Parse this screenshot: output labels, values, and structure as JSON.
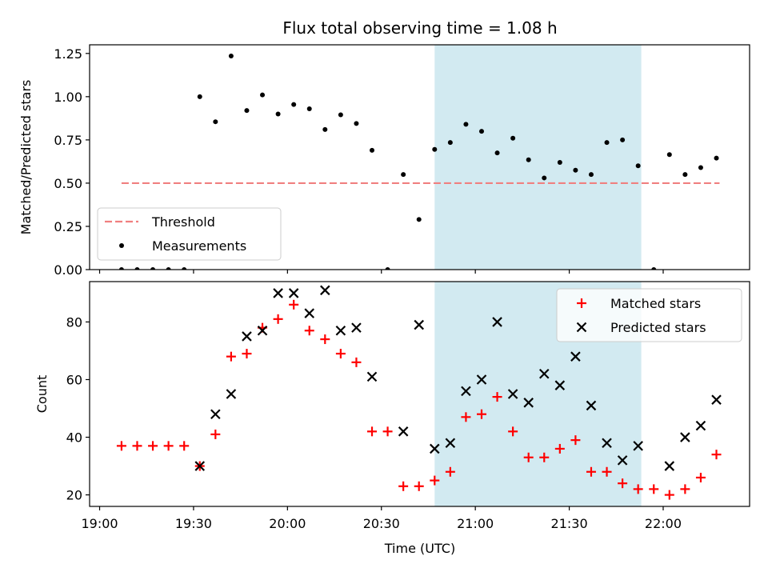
{
  "title": "Flux total observing time = 1.08 h",
  "colors": {
    "threshold": "#f08080",
    "measurement": "#000000",
    "matched": "#ff0000",
    "predicted": "#000000",
    "shade": "#add8e6"
  },
  "x_axis": {
    "label": "Time (UTC)",
    "ticks": [
      "19:00",
      "19:30",
      "20:00",
      "20:30",
      "21:00",
      "21:30",
      "22:00"
    ]
  },
  "chart_data": [
    {
      "type": "scatter",
      "ylabel": "Matched/Predicted stars",
      "ylim": [
        0,
        1.3
      ],
      "yticks": [
        "0.00",
        "0.25",
        "0.50",
        "0.75",
        "1.00",
        "1.25"
      ],
      "ytick_values": [
        0,
        0.25,
        0.5,
        0.75,
        1.0,
        1.25
      ],
      "shaded_region": [
        "20:47",
        "21:53"
      ],
      "threshold": {
        "name": "Threshold",
        "value": 0.5,
        "from": "19:07",
        "to": "22:18"
      },
      "series": [
        {
          "name": "Measurements",
          "x": [
            "19:07",
            "19:12",
            "19:17",
            "19:22",
            "19:27",
            "19:32",
            "19:37",
            "19:42",
            "19:47",
            "19:52",
            "19:57",
            "20:02",
            "20:07",
            "20:12",
            "20:17",
            "20:22",
            "20:27",
            "20:32",
            "20:37",
            "20:42",
            "20:47",
            "20:52",
            "20:57",
            "21:02",
            "21:07",
            "21:12",
            "21:17",
            "21:22",
            "21:27",
            "21:32",
            "21:37",
            "21:42",
            "21:47",
            "21:52",
            "21:57",
            "22:02",
            "22:07",
            "22:12",
            "22:17"
          ],
          "y": [
            0,
            0,
            0,
            0,
            0,
            1.0,
            0.855,
            1.235,
            0.92,
            1.01,
            0.9,
            0.955,
            0.93,
            0.81,
            0.895,
            0.845,
            0.69,
            0,
            0.55,
            0.29,
            0.695,
            0.735,
            0.84,
            0.8,
            0.675,
            0.76,
            0.635,
            0.53,
            0.62,
            0.575,
            0.55,
            0.735,
            0.75,
            0.6,
            0,
            0.665,
            0.55,
            0.59,
            0.645
          ]
        }
      ],
      "legend": [
        "Threshold",
        "Measurements"
      ],
      "legend_position": "lower-left"
    },
    {
      "type": "scatter",
      "ylabel": "Count",
      "ylim": [
        16,
        94
      ],
      "yticks": [
        "20",
        "40",
        "60",
        "80"
      ],
      "ytick_values": [
        20,
        40,
        60,
        80
      ],
      "shaded_region": [
        "20:47",
        "21:53"
      ],
      "series": [
        {
          "name": "Matched stars",
          "x": [
            "19:07",
            "19:12",
            "19:17",
            "19:22",
            "19:27",
            "19:32",
            "19:37",
            "19:42",
            "19:47",
            "19:52",
            "19:57",
            "20:02",
            "20:07",
            "20:12",
            "20:17",
            "20:22",
            "20:27",
            "20:32",
            "20:37",
            "20:42",
            "20:47",
            "20:52",
            "20:57",
            "21:02",
            "21:07",
            "21:12",
            "21:17",
            "21:22",
            "21:27",
            "21:32",
            "21:37",
            "21:42",
            "21:47",
            "21:52",
            "21:57",
            "22:02",
            "22:07",
            "22:12",
            "22:17"
          ],
          "y": [
            37,
            37,
            37,
            37,
            37,
            30,
            41,
            68,
            69,
            78,
            81,
            86,
            77,
            74,
            69,
            66,
            42,
            42,
            23,
            23,
            25,
            28,
            47,
            48,
            54,
            42,
            33,
            33,
            36,
            39,
            28,
            28,
            24,
            22,
            22,
            20,
            22,
            26,
            34
          ]
        },
        {
          "name": "Predicted stars",
          "x": [
            "19:32",
            "19:37",
            "19:42",
            "19:47",
            "19:52",
            "19:57",
            "20:02",
            "20:07",
            "20:12",
            "20:17",
            "20:22",
            "20:27",
            "20:37",
            "20:42",
            "20:47",
            "20:52",
            "20:57",
            "21:02",
            "21:07",
            "21:12",
            "21:17",
            "21:22",
            "21:27",
            "21:32",
            "21:37",
            "21:42",
            "21:47",
            "21:52",
            "22:02",
            "22:07",
            "22:12",
            "22:17"
          ],
          "y": [
            30,
            48,
            55,
            75,
            77,
            90,
            90,
            83,
            91,
            77,
            78,
            61,
            42,
            79,
            36,
            38,
            56,
            60,
            80,
            55,
            52,
            62,
            58,
            68,
            51,
            38,
            32,
            37,
            30,
            40,
            44,
            53
          ]
        }
      ],
      "legend": [
        "Matched stars",
        "Predicted stars"
      ],
      "legend_position": "upper-right"
    }
  ]
}
